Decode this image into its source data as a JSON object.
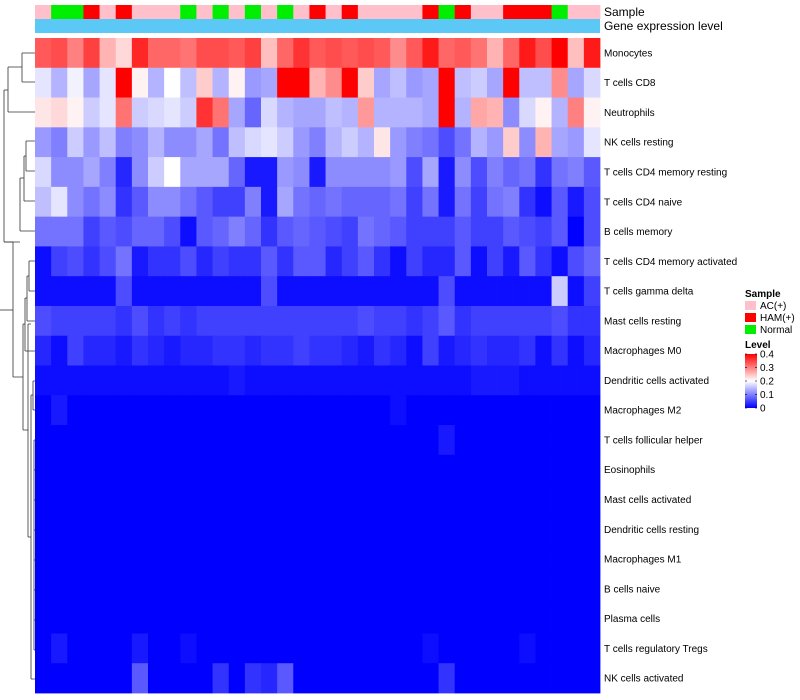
{
  "chart_data": {
    "type": "heatmap",
    "annotation_tracks": [
      "Sample",
      "Gene expression level"
    ],
    "rows": [
      "Monocytes",
      "T cells CD8",
      "Neutrophils",
      "NK cells resting",
      "T cells CD4 memory resting",
      "T cells CD4 naive",
      "B cells memory",
      "T cells CD4 memory activated",
      "T cells gamma delta",
      "Mast cells resting",
      "Macrophages M0",
      "Dendritic cells activated",
      "Macrophages M2",
      "T cells follicular helper",
      "Eosinophils",
      "Mast cells activated",
      "Dendritic cells resting",
      "Macrophages M1",
      "B cells naive",
      "Plasma cells",
      "T cells regulatory  Tregs",
      "NK cells activated"
    ],
    "sample_groups": [
      "A",
      "N",
      "N",
      "H",
      "A",
      "H",
      "A",
      "A",
      "A",
      "N",
      "A",
      "N",
      "A",
      "N",
      "A",
      "N",
      "A",
      "H",
      "A",
      "H",
      "A",
      "A",
      "A",
      "A",
      "H",
      "N",
      "H",
      "A",
      "A",
      "H",
      "H",
      "H",
      "N",
      "A",
      "A"
    ],
    "values": [
      [
        0.33,
        0.34,
        0.3,
        0.35,
        0.26,
        0.23,
        0.37,
        0.32,
        0.32,
        0.31,
        0.34,
        0.34,
        0.33,
        0.35,
        0.25,
        0.32,
        0.36,
        0.33,
        0.34,
        0.33,
        0.34,
        0.33,
        0.29,
        0.33,
        0.38,
        0.32,
        0.33,
        0.31,
        0.26,
        0.32,
        0.38,
        0.34,
        0.4,
        0.25,
        0.38
      ],
      [
        0.18,
        0.14,
        0.19,
        0.13,
        0.18,
        0.4,
        0.21,
        0.14,
        0.2,
        0.15,
        0.24,
        0.14,
        0.21,
        0.12,
        0.13,
        0.4,
        0.4,
        0.26,
        0.29,
        0.4,
        0.24,
        0.13,
        0.15,
        0.12,
        0.13,
        0.4,
        0.15,
        0.16,
        0.13,
        0.4,
        0.15,
        0.15,
        0.29,
        0.13,
        0.17
      ],
      [
        0.22,
        0.23,
        0.21,
        0.16,
        0.18,
        0.31,
        0.16,
        0.17,
        0.18,
        0.16,
        0.36,
        0.31,
        0.13,
        0.08,
        0.17,
        0.14,
        0.13,
        0.13,
        0.15,
        0.14,
        0.28,
        0.14,
        0.14,
        0.14,
        0.13,
        0.4,
        0.14,
        0.27,
        0.26,
        0.11,
        0.17,
        0.21,
        0.14,
        0.3,
        0.21
      ],
      [
        0.12,
        0.1,
        0.16,
        0.12,
        0.15,
        0.1,
        0.11,
        0.14,
        0.11,
        0.11,
        0.13,
        0.09,
        0.15,
        0.17,
        0.18,
        0.16,
        0.12,
        0.1,
        0.14,
        0.16,
        0.14,
        0.22,
        0.12,
        0.1,
        0.09,
        0.06,
        0.09,
        0.14,
        0.12,
        0.24,
        0.11,
        0.26,
        0.13,
        0.12,
        0.18
      ],
      [
        0.17,
        0.11,
        0.11,
        0.13,
        0.1,
        0.03,
        0.11,
        0.16,
        0.2,
        0.13,
        0.13,
        0.13,
        0.08,
        0.02,
        0.02,
        0.12,
        0.11,
        0.02,
        0.11,
        0.11,
        0.11,
        0.11,
        0.12,
        0.06,
        0.13,
        0.02,
        0.11,
        0.06,
        0.1,
        0.08,
        0.09,
        0.04,
        0.09,
        0.1,
        0.07
      ],
      [
        0.15,
        0.18,
        0.11,
        0.09,
        0.11,
        0.04,
        0.07,
        0.11,
        0.11,
        0.09,
        0.07,
        0.05,
        0.05,
        0.1,
        0.02,
        0.13,
        0.09,
        0.08,
        0.09,
        0.08,
        0.08,
        0.08,
        0.09,
        0.05,
        0.09,
        0.02,
        0.09,
        0.05,
        0.09,
        0.1,
        0.04,
        0.01,
        0.07,
        0.02,
        0.06
      ],
      [
        0.09,
        0.09,
        0.09,
        0.05,
        0.07,
        0.06,
        0.08,
        0.08,
        0.06,
        0.01,
        0.07,
        0.08,
        0.1,
        0.08,
        0.04,
        0.07,
        0.08,
        0.07,
        0.06,
        0.05,
        0.09,
        0.08,
        0.07,
        0.05,
        0.05,
        0.05,
        0.07,
        0.05,
        0.05,
        0.07,
        0.06,
        0.05,
        0.07,
        0.0,
        0.06
      ],
      [
        0.01,
        0.05,
        0.06,
        0.04,
        0.06,
        0.09,
        0.02,
        0.04,
        0.04,
        0.06,
        0.03,
        0.05,
        0.04,
        0.04,
        0.07,
        0.04,
        0.07,
        0.07,
        0.03,
        0.05,
        0.07,
        0.04,
        0.01,
        0.05,
        0.03,
        0.03,
        0.07,
        0.01,
        0.05,
        0.02,
        0.07,
        0.04,
        0.01,
        0.06,
        0.08
      ],
      [
        0.01,
        0.01,
        0.01,
        0.01,
        0.01,
        0.06,
        0.01,
        0.01,
        0.01,
        0.01,
        0.01,
        0.01,
        0.01,
        0.01,
        0.06,
        0.01,
        0.01,
        0.01,
        0.01,
        0.01,
        0.01,
        0.01,
        0.01,
        0.01,
        0.01,
        0.06,
        0.01,
        0.01,
        0.01,
        0.01,
        0.01,
        0.01,
        0.16,
        0.01,
        0.05
      ],
      [
        0.06,
        0.05,
        0.05,
        0.05,
        0.05,
        0.04,
        0.06,
        0.04,
        0.05,
        0.04,
        0.05,
        0.05,
        0.05,
        0.05,
        0.05,
        0.05,
        0.05,
        0.05,
        0.05,
        0.05,
        0.06,
        0.05,
        0.05,
        0.04,
        0.05,
        0.07,
        0.04,
        0.05,
        0.05,
        0.05,
        0.05,
        0.05,
        0.06,
        0.04,
        0.04
      ],
      [
        0.03,
        0.01,
        0.05,
        0.03,
        0.03,
        0.02,
        0.04,
        0.03,
        0.02,
        0.03,
        0.03,
        0.04,
        0.04,
        0.03,
        0.04,
        0.04,
        0.05,
        0.04,
        0.04,
        0.03,
        0.02,
        0.04,
        0.03,
        0.01,
        0.05,
        0.02,
        0.03,
        0.04,
        0.03,
        0.03,
        0.04,
        0.01,
        0.04,
        0.01,
        0.03
      ],
      [
        0.01,
        0.01,
        0.01,
        0.01,
        0.01,
        0.01,
        0.01,
        0.01,
        0.01,
        0.01,
        0.01,
        0.01,
        0.02,
        0.01,
        0.01,
        0.01,
        0.01,
        0.01,
        0.01,
        0.01,
        0.01,
        0.01,
        0.01,
        0.01,
        0.01,
        0.01,
        0.01,
        0.02,
        0.02,
        0.02,
        0.01,
        0.01,
        0.01,
        0.01,
        0.01
      ],
      [
        0.0,
        0.02,
        0.0,
        0.0,
        0.0,
        0.0,
        0.0,
        0.0,
        0.0,
        0.0,
        0.0,
        0.0,
        0.0,
        0.0,
        0.0,
        0.0,
        0.0,
        0.0,
        0.0,
        0.0,
        0.0,
        0.0,
        0.01,
        0.0,
        0.0,
        0.0,
        0.0,
        0.0,
        0.0,
        0.0,
        0.0,
        0.0,
        0.0,
        0.0,
        0.0
      ],
      [
        0.0,
        0.0,
        0.0,
        0.0,
        0.0,
        0.0,
        0.0,
        0.0,
        0.0,
        0.0,
        0.0,
        0.0,
        0.0,
        0.0,
        0.0,
        0.0,
        0.0,
        0.0,
        0.0,
        0.0,
        0.0,
        0.0,
        0.0,
        0.0,
        0.0,
        0.02,
        0.0,
        0.0,
        0.0,
        0.0,
        0.0,
        0.0,
        0.0,
        0.0,
        0.0
      ],
      [
        0.0,
        0.0,
        0.0,
        0.0,
        0.0,
        0.0,
        0.0,
        0.0,
        0.0,
        0.0,
        0.0,
        0.0,
        0.0,
        0.0,
        0.0,
        0.0,
        0.0,
        0.0,
        0.0,
        0.0,
        0.0,
        0.0,
        0.0,
        0.0,
        0.0,
        0.0,
        0.0,
        0.0,
        0.0,
        0.0,
        0.0,
        0.0,
        0.0,
        0.0,
        0.0
      ],
      [
        0.0,
        0.0,
        0.0,
        0.0,
        0.0,
        0.0,
        0.0,
        0.0,
        0.0,
        0.0,
        0.0,
        0.0,
        0.0,
        0.0,
        0.0,
        0.0,
        0.0,
        0.0,
        0.0,
        0.0,
        0.0,
        0.0,
        0.0,
        0.0,
        0.0,
        0.0,
        0.0,
        0.0,
        0.0,
        0.0,
        0.0,
        0.0,
        0.0,
        0.0,
        0.0
      ],
      [
        0.0,
        0.0,
        0.0,
        0.0,
        0.0,
        0.0,
        0.0,
        0.0,
        0.0,
        0.0,
        0.0,
        0.0,
        0.0,
        0.0,
        0.0,
        0.0,
        0.0,
        0.0,
        0.0,
        0.0,
        0.0,
        0.0,
        0.0,
        0.0,
        0.0,
        0.0,
        0.0,
        0.0,
        0.0,
        0.0,
        0.0,
        0.0,
        0.0,
        0.0,
        0.0
      ],
      [
        0.0,
        0.0,
        0.0,
        0.0,
        0.0,
        0.0,
        0.0,
        0.0,
        0.0,
        0.0,
        0.0,
        0.0,
        0.0,
        0.0,
        0.0,
        0.0,
        0.0,
        0.0,
        0.0,
        0.0,
        0.0,
        0.0,
        0.0,
        0.0,
        0.0,
        0.0,
        0.0,
        0.0,
        0.0,
        0.0,
        0.0,
        0.0,
        0.0,
        0.0,
        0.0
      ],
      [
        0.0,
        0.0,
        0.0,
        0.0,
        0.0,
        0.0,
        0.0,
        0.0,
        0.0,
        0.0,
        0.0,
        0.0,
        0.0,
        0.0,
        0.0,
        0.0,
        0.0,
        0.0,
        0.0,
        0.0,
        0.0,
        0.0,
        0.0,
        0.0,
        0.0,
        0.0,
        0.0,
        0.0,
        0.0,
        0.0,
        0.0,
        0.0,
        0.0,
        0.0,
        0.0
      ],
      [
        0.0,
        0.0,
        0.0,
        0.0,
        0.0,
        0.0,
        0.0,
        0.0,
        0.0,
        0.0,
        0.0,
        0.0,
        0.0,
        0.0,
        0.0,
        0.0,
        0.0,
        0.0,
        0.0,
        0.0,
        0.0,
        0.0,
        0.0,
        0.0,
        0.0,
        0.0,
        0.0,
        0.0,
        0.0,
        0.0,
        0.0,
        0.0,
        0.0,
        0.0,
        0.0
      ],
      [
        0.0,
        0.02,
        0.0,
        0.0,
        0.0,
        0.0,
        0.02,
        0.0,
        0.0,
        0.01,
        0.0,
        0.0,
        0.0,
        0.0,
        0.0,
        0.0,
        0.0,
        0.0,
        0.0,
        0.0,
        0.0,
        0.0,
        0.0,
        0.0,
        0.01,
        0.0,
        0.0,
        0.0,
        0.0,
        0.0,
        0.01,
        0.0,
        0.0,
        0.0,
        0.0
      ],
      [
        0.0,
        0.0,
        0.0,
        0.0,
        0.0,
        0.0,
        0.07,
        0.0,
        0.0,
        0.0,
        0.0,
        0.04,
        0.0,
        0.04,
        0.03,
        0.07,
        0.0,
        0.0,
        0.0,
        0.0,
        0.0,
        0.0,
        0.0,
        0.0,
        0.0,
        0.04,
        0.0,
        0.0,
        0.0,
        0.0,
        0.0,
        0.0,
        0.0,
        0.0,
        0.0
      ]
    ],
    "legend": {
      "sample_title": "Sample",
      "sample_entries": [
        {
          "key": "A",
          "label": "AC(+)",
          "color": "#ffc0cb"
        },
        {
          "key": "H",
          "label": "HAM(+)",
          "color": "#ff0000"
        },
        {
          "key": "N",
          "label": "Normal",
          "color": "#00ee00"
        }
      ],
      "level_title": "Level",
      "level_ticks": [
        "0.4",
        "0.3",
        "0.2",
        "0.1",
        "0"
      ],
      "range": [
        0,
        0.4
      ]
    },
    "colors": {
      "low": "#0000ff",
      "mid": "#ffffff",
      "high": "#ff0000",
      "expr_bar": "#5bc8f5"
    }
  }
}
